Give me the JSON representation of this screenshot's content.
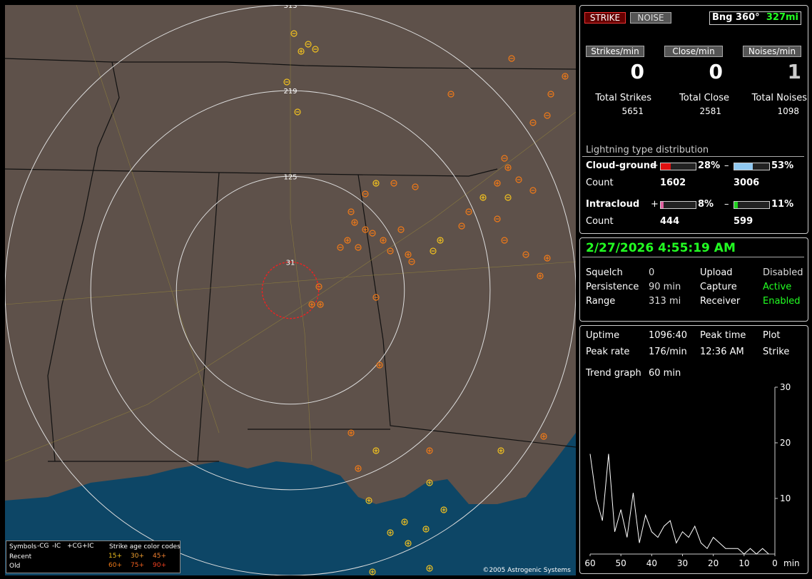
{
  "buttons": {
    "strike": "STRIKE",
    "noise": "NOISE"
  },
  "bearing": {
    "label": "Bng 360°",
    "range": "327mi"
  },
  "rates": [
    {
      "label": "Strikes/min",
      "value": 0
    },
    {
      "label": "Close/min",
      "value": 0
    },
    {
      "label": "Noises/min",
      "value": 1
    }
  ],
  "totals": [
    {
      "label": "Total Strikes",
      "value": 5651
    },
    {
      "label": "Total Close",
      "value": 2581
    },
    {
      "label": "Total Noises",
      "value": 1098
    }
  ],
  "distribution": {
    "title": "Lightning type distribution",
    "count_label": "Count",
    "rows": [
      {
        "name": "Cloud-ground",
        "pos": {
          "sign": "+",
          "percent": 28,
          "percent_label": "28%",
          "count": 1602,
          "color": "#e01010"
        },
        "neg": {
          "sign": "–",
          "percent": 53,
          "percent_label": "53%",
          "count": 3006,
          "color": "#90c8f0"
        }
      },
      {
        "name": "Intracloud",
        "pos": {
          "sign": "+",
          "percent": 8,
          "percent_label": "8%",
          "count": 444,
          "color": "#e060a0"
        },
        "neg": {
          "sign": "–",
          "percent": 11,
          "percent_label": "11%",
          "count": 599,
          "color": "#20d020"
        }
      }
    ]
  },
  "datetime": "2/27/2026 4:55:19 AM",
  "status": [
    [
      {
        "label": "Squelch",
        "value": "0"
      },
      {
        "label": "Upload",
        "value": "Disabled"
      }
    ],
    [
      {
        "label": "Persistence",
        "value": "90 min"
      },
      {
        "label": "Capture",
        "value": "Active"
      }
    ],
    [
      {
        "label": "Range",
        "value": "313 mi"
      },
      {
        "label": "Receiver",
        "value": "Enabled"
      }
    ]
  ],
  "stats": [
    [
      {
        "label": "Uptime",
        "value": "1096:40"
      },
      {
        "label": "Peak time",
        "value": "Plot"
      }
    ],
    [
      {
        "label": "Peak rate",
        "value": "176/min"
      },
      {
        "label": "12:36 AM",
        "value": "Strike"
      }
    ]
  ],
  "trend": {
    "title": "Trend graph",
    "window": "60 min",
    "x_unit": "min",
    "xlim": [
      60,
      0
    ],
    "ylim": [
      0,
      30
    ],
    "xticks": [
      60,
      50,
      40,
      30,
      20,
      10,
      0
    ],
    "yticks": [
      10,
      20,
      30
    ],
    "color": "#ffffff",
    "x": [
      60,
      58,
      56,
      54,
      52,
      50,
      48,
      46,
      44,
      42,
      40,
      38,
      36,
      34,
      32,
      30,
      28,
      26,
      24,
      22,
      20,
      18,
      16,
      14,
      12,
      10,
      8,
      6,
      4,
      2
    ],
    "values": [
      18,
      10,
      6,
      18,
      4,
      8,
      3,
      11,
      2,
      7,
      4,
      3,
      5,
      6,
      2,
      4,
      3,
      5,
      2,
      1,
      3,
      2,
      1,
      1,
      1,
      0,
      1,
      0,
      1,
      0
    ]
  },
  "map": {
    "range_rings": [
      313,
      219,
      125,
      31
    ],
    "copyright": "©2005 Astrogenic Systems",
    "legend": {
      "symbols": "Symbols",
      "types": [
        "-CG",
        "-IC",
        "+CG",
        "+IC"
      ],
      "recent": "Recent",
      "old": "Old",
      "age_title": "Strike age color codes",
      "recent_ages": [
        "15+",
        "30+",
        "45+"
      ],
      "old_ages": [
        "60+",
        "75+",
        "90+"
      ]
    }
  }
}
